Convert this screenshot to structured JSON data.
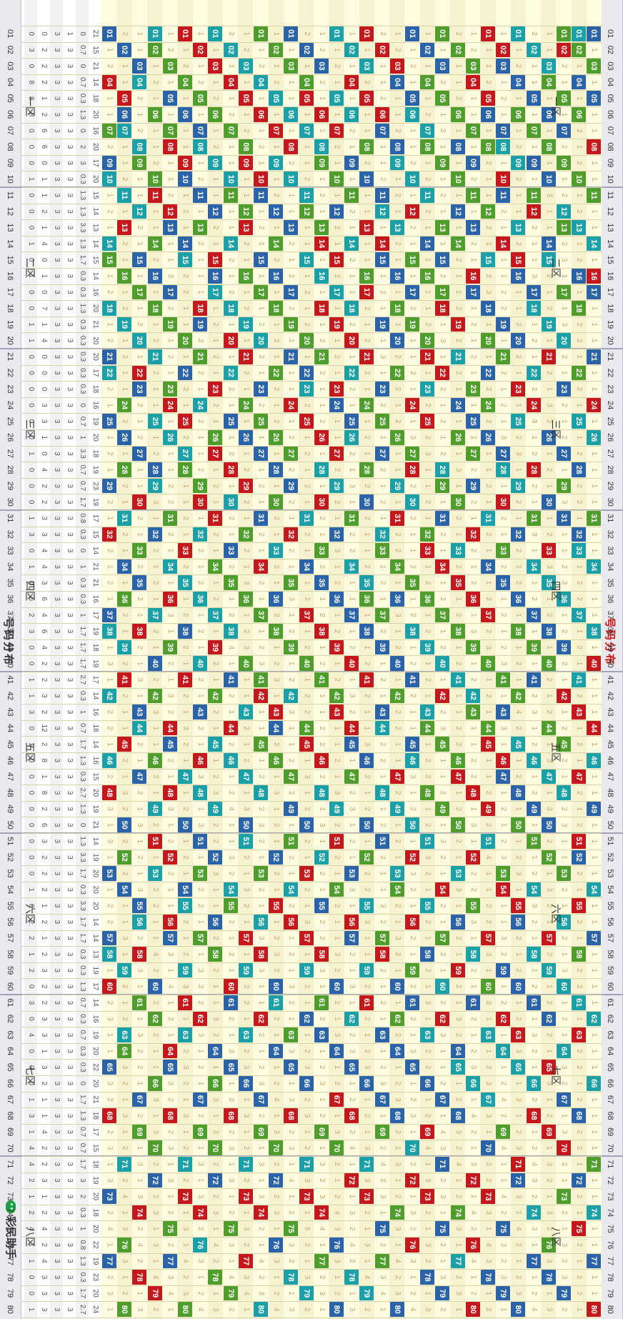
{
  "page": {
    "title": "号码分布",
    "watermark": "彩民助手",
    "zone_labels": [
      "一区",
      "二区",
      "三区",
      "四区",
      "五区",
      "六区",
      "七区",
      "八区"
    ]
  },
  "colors": {
    "hit": [
      "#c5181d",
      "#2a63a8",
      "#1aa0a6",
      "#4f9e2d"
    ],
    "miss_text": "#c7a46c",
    "title": "#d01414"
  },
  "chart_data": {
    "type": "table",
    "title": "号码分布",
    "numbers": 80,
    "zones": 8,
    "draw_rows": 33,
    "stats_rows": [
      [
        21,
        15,
        21,
        14,
        18,
        20,
        16,
        20,
        17,
        20,
        15,
        14,
        13,
        14,
        15,
        14,
        16,
        20,
        21,
        20,
        20,
        17,
        18,
        16,
        19,
        20,
        18,
        19,
        23,
        19,
        17,
        15,
        14,
        21,
        21,
        16,
        17,
        19,
        18,
        19,
        17,
        14,
        16,
        18,
        14,
        16,
        15,
        20,
        19,
        21,
        14,
        19,
        20,
        20,
        20,
        14,
        14,
        13,
        19,
        17,
        14,
        16,
        19,
        20,
        22,
        20,
        21,
        18,
        17,
        15,
        18,
        19,
        20,
        18,
        20,
        22,
        19,
        23,
        20,
        24
      ],
      [
        0,
        0.7,
        0,
        0.7,
        0.3,
        1.3,
        0,
        2,
        3,
        0.3,
        1.3,
        1.3,
        3.3,
        1.3,
        1.7,
        0.3,
        0.3,
        1.3,
        0.3,
        0.3,
        0.3,
        0.3,
        0.3,
        0,
        0.7,
        1,
        3.3,
        0.7,
        0.7,
        1.7,
        0.8,
        0.3,
        0,
        1,
        0.3,
        0.3,
        1,
        1.7,
        1.7,
        1.7,
        2.7,
        0.3,
        1,
        0.7,
        1.7,
        1.3,
        0.3,
        2.7,
        1.3,
        0,
        1.3,
        3.3,
        1.7,
        0.3,
        3.3,
        1.7,
        1.7,
        0.3,
        0.3,
        1.3,
        0.7,
        0.3,
        0.7,
        0.3,
        0.3,
        0,
        1.7,
        1.3,
        0.7,
        0.7,
        1.7,
        3,
        2,
        0.3,
        1,
        0.8,
        1.3,
        0.3,
        1.7,
        2.7
      ],
      [
        1,
        3,
        3,
        3,
        3,
        3,
        3,
        3,
        3,
        3,
        3,
        3,
        3,
        3,
        3,
        3,
        3,
        3,
        3,
        3,
        3,
        3,
        3,
        3,
        3,
        3,
        3,
        3,
        3,
        3,
        3,
        3,
        3,
        3,
        3,
        3,
        3,
        3,
        3,
        3,
        3,
        3,
        3,
        3,
        3,
        3,
        3,
        3,
        3,
        3,
        3,
        3,
        3,
        3,
        3,
        3,
        3,
        3,
        3,
        3,
        3,
        3,
        3,
        3,
        3,
        3,
        3,
        3,
        3,
        3,
        3,
        3,
        3,
        3,
        3,
        3,
        3,
        3,
        3,
        3
      ],
      [
        3,
        3,
        3,
        3,
        3,
        3,
        3,
        3,
        3,
        3,
        3,
        3,
        3,
        3,
        3,
        3,
        3,
        3,
        3,
        3,
        3,
        3,
        3,
        3,
        3,
        3,
        3,
        3,
        3,
        3,
        3,
        3,
        3,
        3,
        3,
        3,
        3,
        3,
        3,
        3,
        3,
        3,
        3,
        3,
        3,
        3,
        3,
        3,
        3,
        3,
        3,
        3,
        3,
        3,
        3,
        3,
        3,
        3,
        3,
        3,
        3,
        3,
        3,
        3,
        3,
        3,
        3,
        3,
        3,
        3,
        3,
        3,
        3,
        3,
        3,
        3,
        3,
        3,
        3,
        3
      ],
      [
        0,
        2,
        2,
        2,
        1,
        2,
        6,
        6,
        0,
        1,
        1,
        2,
        1,
        4,
        0,
        1,
        0,
        7,
        1,
        4,
        0,
        0,
        0,
        3,
        3,
        1,
        0,
        4,
        2,
        2,
        3,
        3,
        4,
        4,
        3,
        6,
        4,
        6,
        4,
        2,
        2,
        3,
        2,
        12,
        2,
        8,
        1,
        8,
        2,
        6,
        3,
        2,
        2,
        2,
        1,
        2,
        1,
        2,
        3,
        2,
        2,
        3,
        3,
        1,
        3,
        2,
        1,
        1,
        4,
        2,
        2,
        3,
        1,
        2,
        4,
        2,
        4,
        3,
        3,
        3
      ],
      [
        0,
        3,
        0,
        8,
        8,
        8,
        0,
        0,
        0,
        1,
        0,
        0,
        0,
        1,
        0,
        1,
        0,
        0,
        1,
        1,
        0,
        0,
        0,
        0,
        0,
        0,
        1,
        0,
        0,
        0,
        1,
        3,
        0,
        1,
        0,
        6,
        2,
        3,
        0,
        0,
        1,
        1,
        3,
        0,
        1,
        0,
        0,
        0,
        0,
        0,
        0,
        0,
        0,
        1,
        0,
        2,
        2,
        1,
        2,
        0,
        3,
        0,
        4,
        0,
        0,
        0,
        1,
        3,
        1,
        4,
        4,
        2,
        1,
        2,
        4,
        1,
        1,
        0,
        0,
        1
      ],
      [
        11,
        9,
        8,
        7,
        7,
        7,
        9,
        9,
        7,
        10,
        10,
        9,
        6,
        6,
        11,
        11,
        10,
        6,
        9,
        9,
        10,
        9,
        10,
        8,
        8,
        6,
        10,
        8,
        6,
        8,
        9,
        8,
        6,
        4,
        6,
        6,
        12,
        6,
        8,
        9,
        10,
        7,
        8,
        4,
        7,
        8,
        13,
        6,
        7,
        9,
        7,
        8,
        11,
        9,
        4,
        11,
        7,
        2,
        6,
        7,
        8,
        9,
        12,
        5,
        6,
        8,
        6,
        3,
        8,
        7,
        5,
        5,
        9,
        7,
        8,
        7,
        7,
        8,
        11,
        11
      ]
    ],
    "hits_by_row": [
      [
        1,
        3,
        5,
        8,
        11,
        14,
        16,
        17,
        21,
        24,
        26,
        31,
        34,
        38,
        40,
        44,
        46,
        49,
        54,
        57,
        62,
        66,
        71,
        74,
        77,
        80
      ],
      [
        1,
        2,
        4,
        6,
        10,
        13,
        16,
        18,
        22,
        25,
        28,
        32,
        33,
        37,
        41,
        43,
        47,
        51,
        52,
        55,
        58,
        61,
        63,
        68,
        72,
        75
      ],
      [
        1,
        2,
        5,
        7,
        9,
        12,
        13,
        17,
        20,
        23,
        27,
        29,
        31,
        36,
        39,
        42,
        45,
        48,
        53,
        56,
        60,
        64,
        67,
        70,
        73,
        79
      ],
      [
        3,
        4,
        6,
        8,
        10,
        14,
        15,
        19,
        21,
        26,
        30,
        33,
        35,
        38,
        40,
        44,
        47,
        50,
        52,
        57,
        59,
        62,
        65,
        69,
        76,
        78
      ],
      [
        2,
        5,
        7,
        9,
        11,
        12,
        17,
        18,
        22,
        24,
        28,
        31,
        34,
        37,
        39,
        41,
        46,
        49,
        51,
        54,
        58,
        61,
        66,
        68,
        74,
        77
      ],
      [
        1,
        4,
        6,
        9,
        13,
        15,
        16,
        20,
        23,
        25,
        29,
        32,
        36,
        38,
        42,
        45,
        48,
        50,
        55,
        56,
        60,
        63,
        65,
        71,
        72,
        80
      ],
      [
        2,
        3,
        7,
        8,
        10,
        11,
        14,
        19,
        21,
        27,
        28,
        30,
        33,
        35,
        41,
        43,
        46,
        47,
        53,
        54,
        59,
        62,
        64,
        69,
        75,
        79
      ],
      [
        1,
        5,
        6,
        8,
        12,
        15,
        18,
        20,
        22,
        24,
        26,
        31,
        34,
        37,
        40,
        44,
        45,
        49,
        51,
        57,
        60,
        63,
        67,
        70,
        73,
        78
      ],
      [
        3,
        4,
        7,
        9,
        11,
        13,
        16,
        17,
        23,
        25,
        27,
        29,
        32,
        36,
        39,
        42,
        43,
        48,
        52,
        55,
        58,
        61,
        66,
        72,
        76,
        80
      ],
      [
        2,
        6,
        8,
        10,
        12,
        14,
        19,
        21,
        24,
        26,
        30,
        33,
        35,
        38,
        41,
        46,
        47,
        50,
        53,
        56,
        59,
        64,
        65,
        68,
        74,
        77
      ],
      [
        1,
        3,
        5,
        9,
        13,
        15,
        17,
        18,
        22,
        28,
        29,
        31,
        34,
        37,
        40,
        42,
        45,
        49,
        54,
        57,
        60,
        62,
        67,
        71,
        75,
        79
      ],
      [
        2,
        4,
        7,
        8,
        11,
        14,
        16,
        20,
        21,
        23,
        25,
        32,
        33,
        36,
        39,
        43,
        44,
        48,
        51,
        55,
        58,
        63,
        66,
        69,
        73,
        78
      ],
      [
        1,
        5,
        6,
        10,
        12,
        15,
        17,
        19,
        24,
        27,
        28,
        30,
        35,
        38,
        41,
        45,
        46,
        50,
        52,
        56,
        59,
        61,
        65,
        70,
        72,
        76
      ],
      [
        3,
        4,
        8,
        9,
        13,
        16,
        18,
        20,
        22,
        26,
        29,
        31,
        34,
        36,
        40,
        42,
        47,
        49,
        53,
        54,
        60,
        62,
        64,
        68,
        74,
        80
      ],
      [
        2,
        6,
        7,
        11,
        12,
        14,
        15,
        19,
        23,
        25,
        27,
        32,
        33,
        37,
        39,
        43,
        44,
        48,
        51,
        57,
        58,
        63,
        67,
        69,
        75,
        77
      ],
      [
        1,
        3,
        5,
        8,
        10,
        13,
        16,
        17,
        21,
        24,
        28,
        30,
        35,
        36,
        38,
        41,
        46,
        50,
        52,
        55,
        59,
        61,
        66,
        71,
        73,
        79
      ],
      [
        2,
        4,
        6,
        9,
        11,
        14,
        18,
        20,
        22,
        25,
        26,
        31,
        34,
        37,
        40,
        44,
        45,
        47,
        53,
        56,
        57,
        62,
        65,
        68,
        72,
        78
      ],
      [
        1,
        5,
        7,
        10,
        12,
        15,
        17,
        19,
        23,
        24,
        27,
        29,
        32,
        36,
        39,
        42,
        43,
        49,
        51,
        54,
        60,
        64,
        67,
        70,
        76,
        80
      ],
      [
        3,
        6,
        8,
        9,
        13,
        14,
        16,
        18,
        21,
        26,
        28,
        30,
        33,
        35,
        38,
        41,
        46,
        48,
        52,
        55,
        58,
        61,
        63,
        69,
        74,
        77
      ],
      [
        2,
        4,
        5,
        7,
        11,
        12,
        15,
        20,
        22,
        23,
        25,
        31,
        34,
        37,
        40,
        44,
        45,
        50,
        53,
        57,
        59,
        62,
        66,
        71,
        73,
        79
      ],
      [
        1,
        3,
        6,
        8,
        10,
        13,
        17,
        19,
        21,
        24,
        27,
        29,
        32,
        35,
        39,
        42,
        47,
        49,
        51,
        54,
        56,
        63,
        65,
        68,
        75,
        78
      ],
      [
        2,
        5,
        7,
        9,
        12,
        14,
        16,
        18,
        22,
        26,
        28,
        30,
        33,
        36,
        38,
        43,
        44,
        46,
        52,
        55,
        60,
        61,
        64,
        70,
        72,
        76
      ],
      [
        1,
        4,
        6,
        10,
        11,
        15,
        17,
        20,
        23,
        25,
        27,
        31,
        34,
        37,
        41,
        42,
        45,
        48,
        53,
        56,
        58,
        62,
        67,
        69,
        74,
        80
      ],
      [
        3,
        5,
        8,
        9,
        12,
        13,
        16,
        19,
        21,
        24,
        26,
        29,
        32,
        36,
        40,
        43,
        47,
        50,
        51,
        57,
        59,
        63,
        66,
        71,
        73,
        77
      ],
      [
        2,
        4,
        7,
        10,
        11,
        14,
        18,
        20,
        22,
        25,
        28,
        30,
        33,
        35,
        38,
        41,
        44,
        46,
        54,
        55,
        60,
        61,
        65,
        68,
        75,
        79
      ],
      [
        1,
        3,
        6,
        9,
        12,
        15,
        16,
        17,
        23,
        26,
        27,
        31,
        34,
        37,
        39,
        42,
        45,
        49,
        52,
        56,
        58,
        64,
        66,
        70,
        72,
        78
      ],
      [
        2,
        5,
        7,
        8,
        11,
        13,
        18,
        19,
        21,
        24,
        29,
        30,
        32,
        36,
        40,
        43,
        46,
        48,
        51,
        53,
        57,
        62,
        67,
        69,
        74,
        76
      ],
      [
        1,
        4,
        6,
        9,
        10,
        14,
        15,
        20,
        22,
        25,
        27,
        28,
        33,
        35,
        38,
        41,
        47,
        50,
        54,
        55,
        59,
        61,
        63,
        71,
        73,
        80
      ],
      [
        3,
        5,
        7,
        8,
        12,
        13,
        17,
        19,
        23,
        24,
        26,
        31,
        34,
        36,
        39,
        44,
        45,
        48,
        52,
        56,
        57,
        64,
        65,
        68,
        75,
        77
      ],
      [
        1,
        2,
        6,
        10,
        11,
        14,
        16,
        18,
        21,
        25,
        28,
        29,
        32,
        37,
        40,
        42,
        46,
        49,
        51,
        53,
        60,
        62,
        66,
        70,
        72,
        79
      ],
      [
        3,
        4,
        8,
        9,
        12,
        15,
        17,
        20,
        22,
        23,
        27,
        30,
        33,
        35,
        38,
        43,
        44,
        47,
        55,
        56,
        58,
        61,
        67,
        69,
        74,
        78
      ],
      [
        2,
        5,
        6,
        7,
        11,
        13,
        16,
        19,
        24,
        26,
        28,
        31,
        34,
        36,
        39,
        41,
        45,
        50,
        52,
        54,
        59,
        63,
        64,
        71,
        76,
        80
      ],
      [
        1,
        4,
        7,
        9,
        10,
        14,
        15,
        18,
        21,
        22,
        25,
        29,
        32,
        37,
        38,
        42,
        46,
        48,
        53,
        57,
        58,
        60,
        65,
        68,
        73,
        77
      ]
    ]
  }
}
